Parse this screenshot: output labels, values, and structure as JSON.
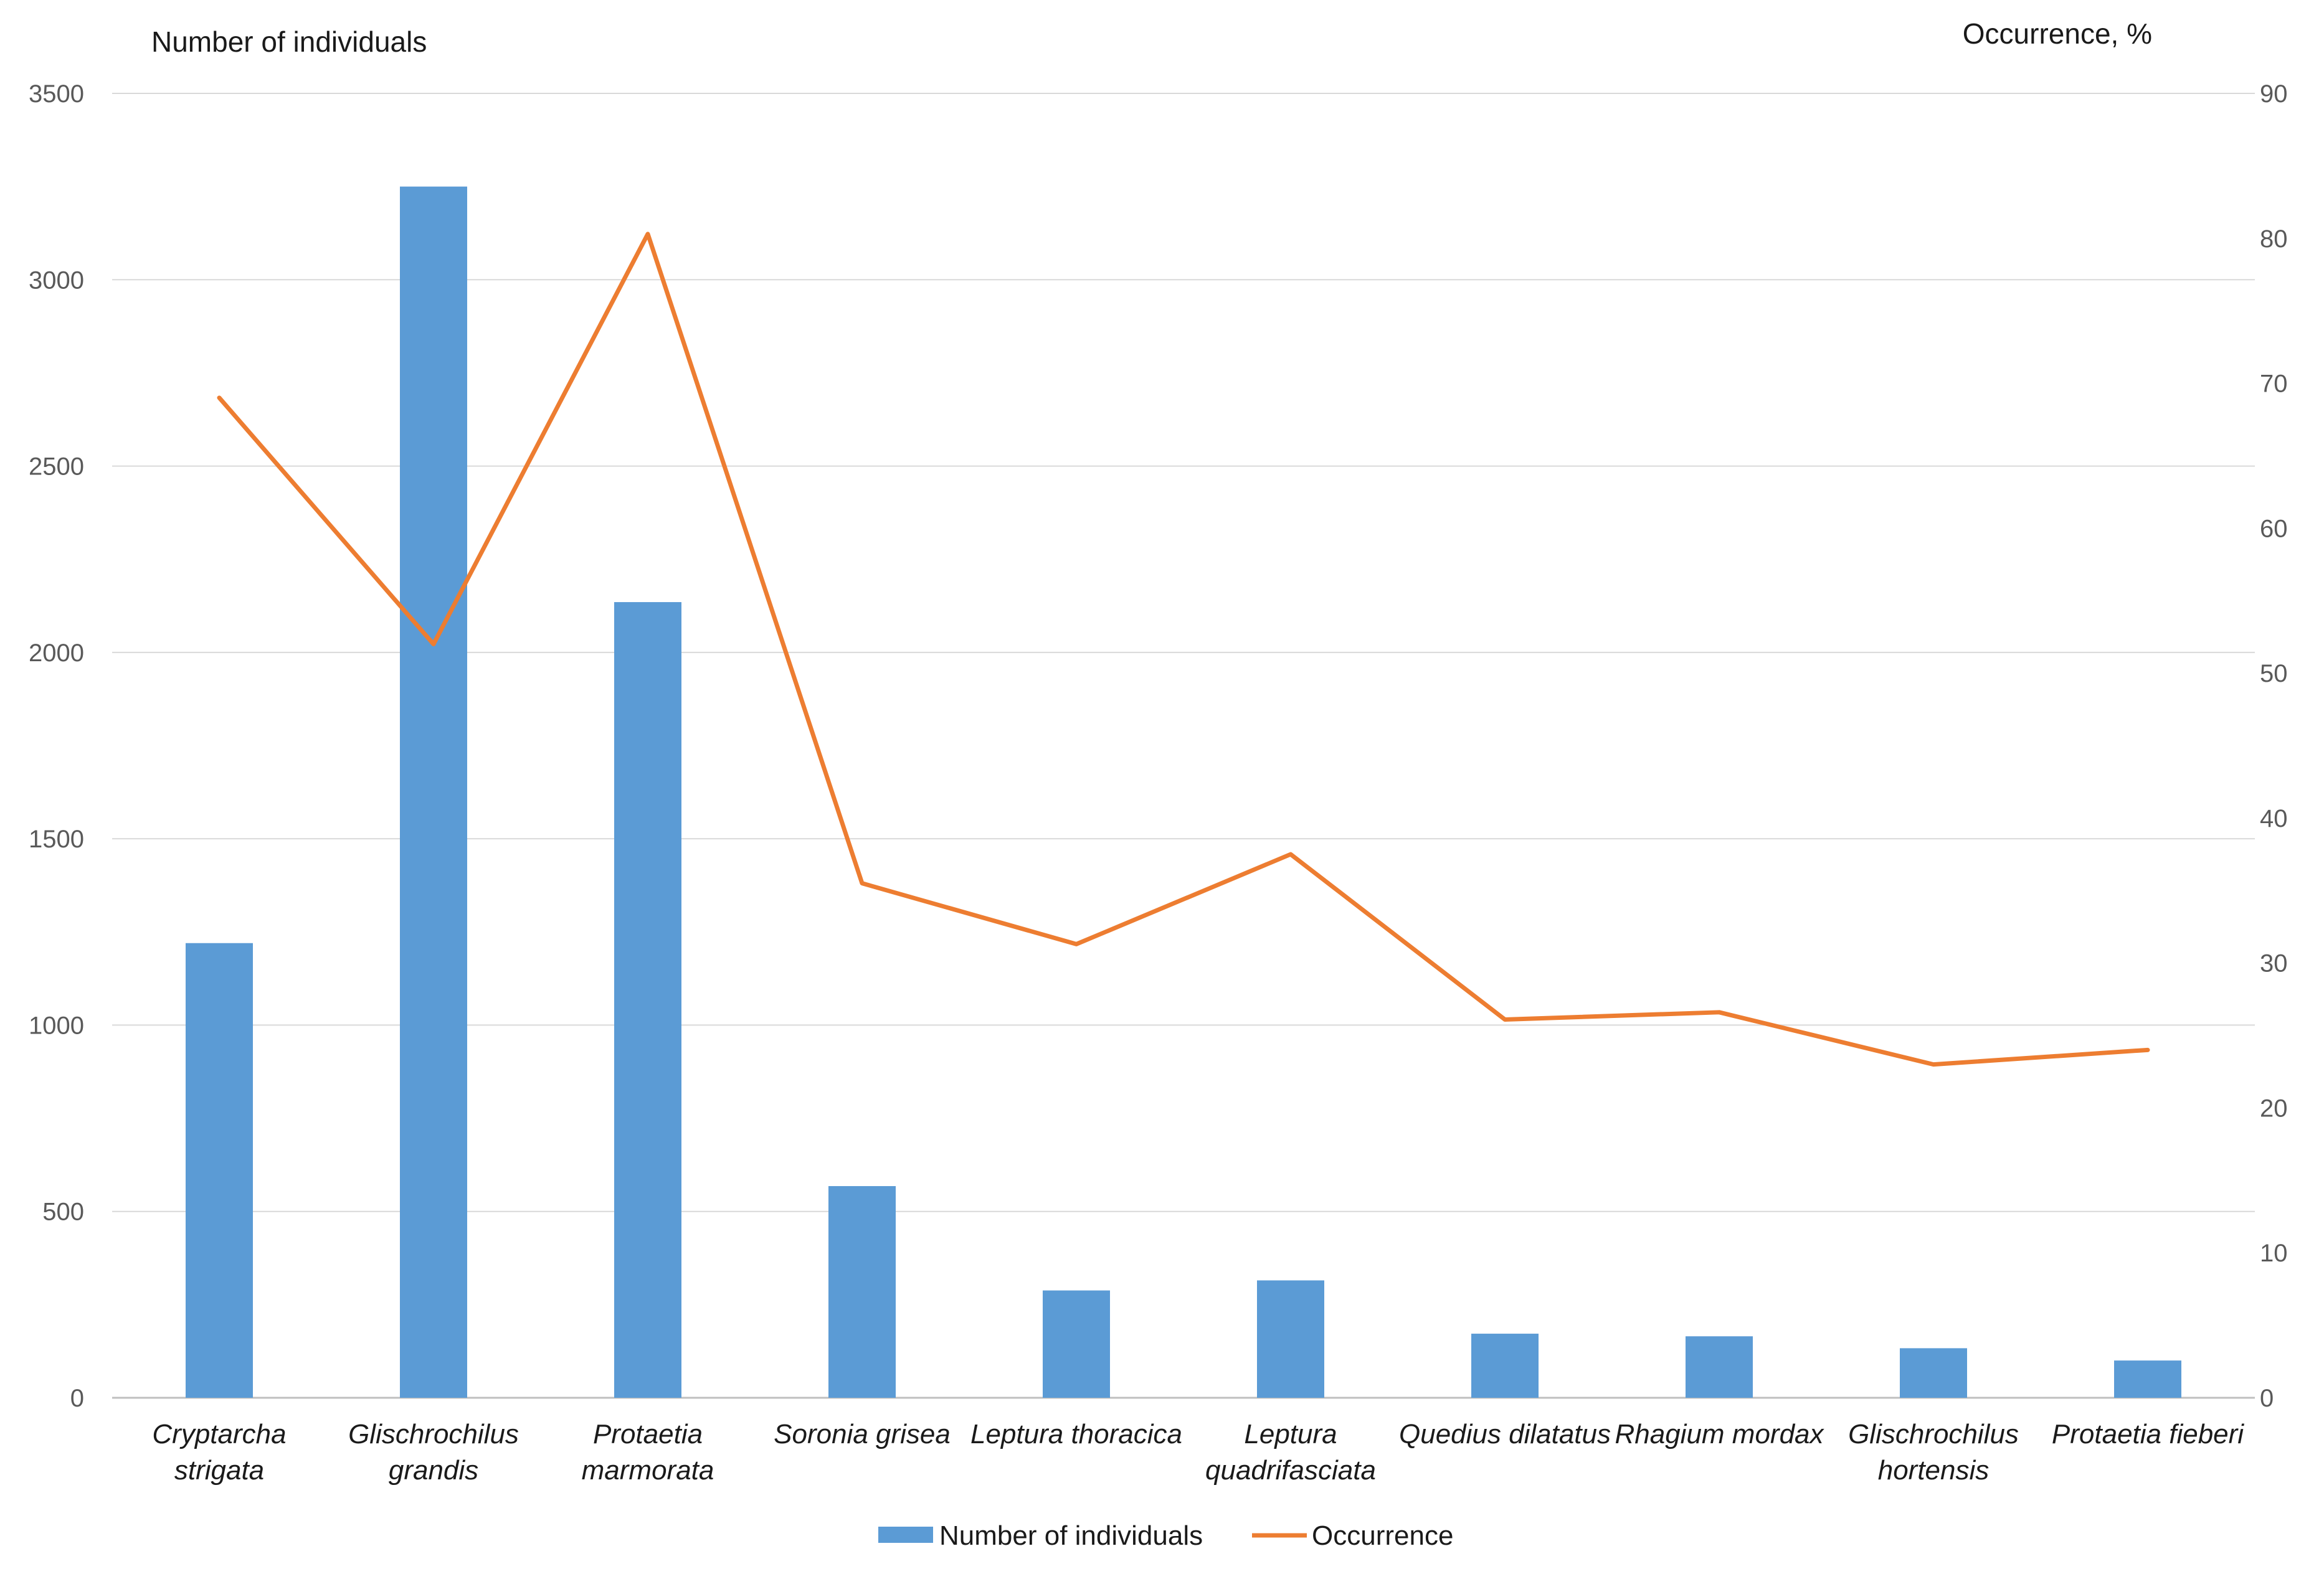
{
  "chart_data": {
    "type": "bar+line",
    "title": "",
    "categories": [
      [
        "Cryptarcha",
        "strigata"
      ],
      [
        "Glischrochilus",
        "grandis"
      ],
      [
        "Protaetia",
        "marmorata"
      ],
      [
        "Soronia grisea"
      ],
      [
        "Leptura thoracica"
      ],
      [
        "Leptura",
        "quadrifasciata"
      ],
      [
        "Quedius dilatatus"
      ],
      [
        "Rhagium mordax"
      ],
      [
        "Glischrochilus",
        "hortensis"
      ],
      [
        "Protaetia fieberi"
      ]
    ],
    "series": [
      {
        "name": "Number of individuals",
        "type": "bar",
        "axis": "left",
        "color": "#5b9bd5",
        "values": [
          1220,
          3250,
          2135,
          568,
          288,
          315,
          172,
          165,
          133,
          100
        ]
      },
      {
        "name": "Occurrence",
        "type": "line",
        "axis": "right",
        "color": "#ed7d31",
        "values": [
          69,
          52,
          80.3,
          35.5,
          31.3,
          37.5,
          26.1,
          26.6,
          23,
          24
        ]
      }
    ],
    "yleft": {
      "label": "Number of individuals",
      "ylim": [
        0,
        3500
      ],
      "ticks": [
        "0",
        "500",
        "1000",
        "1500",
        "2000",
        "2500",
        "3000",
        "3500"
      ]
    },
    "yright": {
      "label": "Occurrence, %",
      "ylim": [
        0,
        90
      ],
      "ticks": [
        "0",
        "10",
        "20",
        "30",
        "40",
        "50",
        "60",
        "70",
        "80",
        "90"
      ]
    },
    "grid": true,
    "legend_position": "bottom-center"
  }
}
